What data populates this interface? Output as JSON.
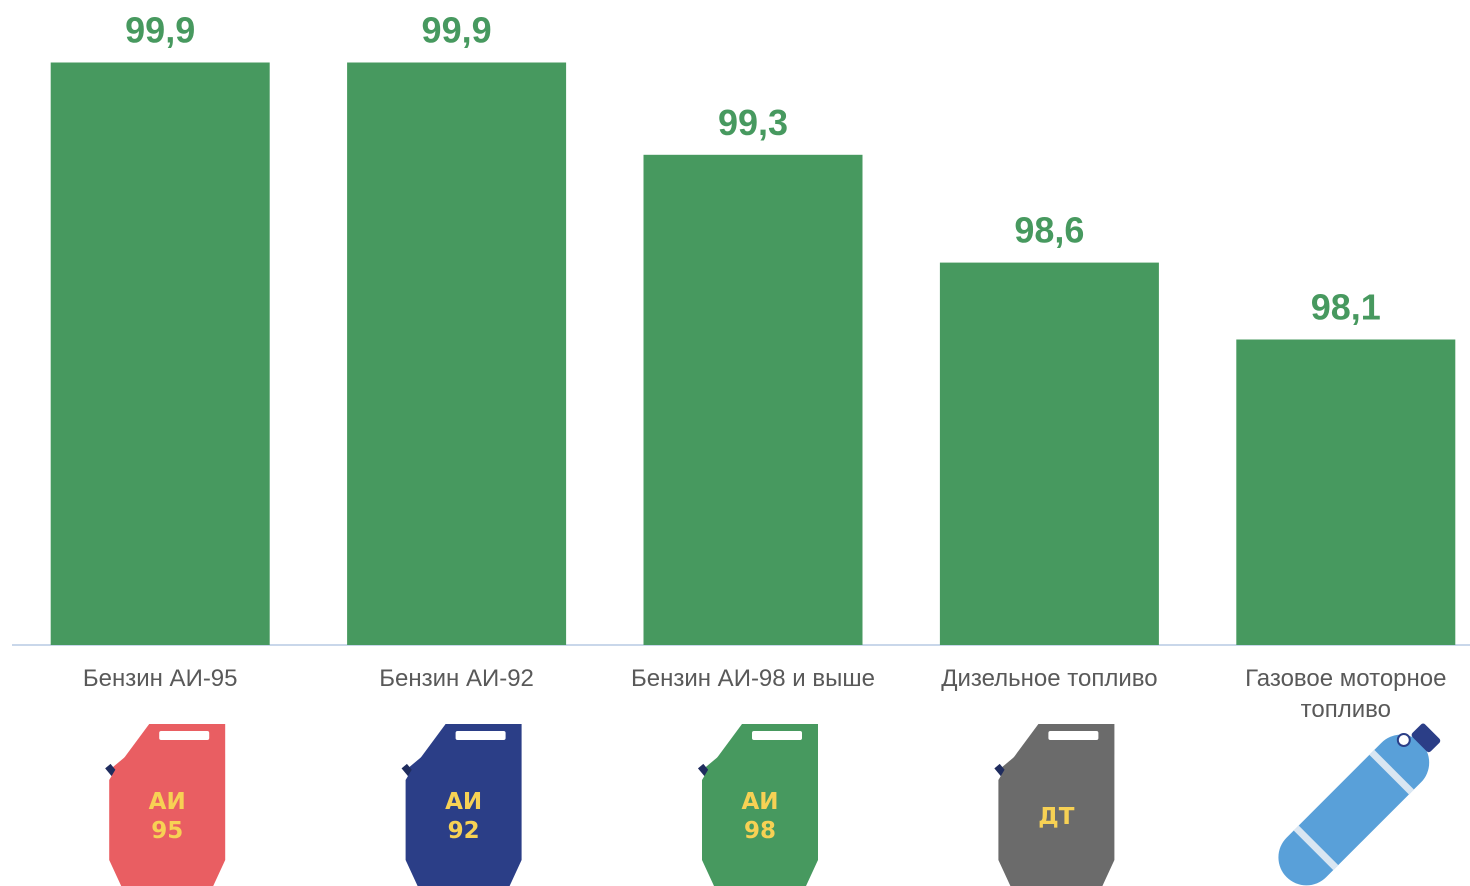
{
  "chart_data": {
    "type": "bar",
    "categories": [
      [
        "Бензин АИ-95"
      ],
      [
        "Бензин АИ-92"
      ],
      [
        "Бензин АИ-98 и выше"
      ],
      [
        "Дизельное топливо"
      ],
      [
        "Газовое моторное",
        "топливо"
      ]
    ],
    "values": [
      99.9,
      99.9,
      99.3,
      98.6,
      98.1
    ],
    "value_labels": [
      "99,9",
      "99,9",
      "99,3",
      "98,6",
      "98,1"
    ],
    "bar_color": "#47995f",
    "label_color": "#47995f",
    "axis_color": "#c9d7ea",
    "grid": false
  },
  "icons": [
    {
      "kind": "jerrycan-icon",
      "color": "#e95e62",
      "text": [
        "АИ",
        "95"
      ]
    },
    {
      "kind": "jerrycan-icon",
      "color": "#2b3e87",
      "text": [
        "АИ",
        "92"
      ]
    },
    {
      "kind": "jerrycan-icon",
      "color": "#47995f",
      "text": [
        "АИ",
        "98"
      ]
    },
    {
      "kind": "jerrycan-icon",
      "color": "#6b6b6b",
      "text": [
        "ДТ"
      ]
    },
    {
      "kind": "gas-cylinder-icon",
      "color": "#59a0d9",
      "text": []
    }
  ]
}
